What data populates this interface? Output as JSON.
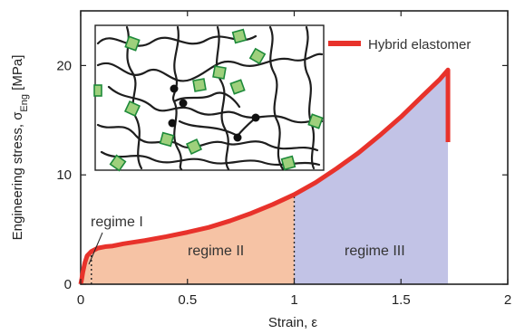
{
  "chart_data": {
    "type": "area",
    "x_axis": {
      "label": "Strain, ε",
      "ticks": [
        "0",
        "0.5",
        "1",
        "1.5",
        "2"
      ],
      "range": [
        0,
        2
      ]
    },
    "y_axis": {
      "label_main": "Engineering stress,  σ",
      "label_sub": "Eng",
      "label_unit": " [MPa]",
      "ticks": [
        "0",
        "10",
        "20"
      ],
      "range": [
        0,
        25
      ]
    },
    "series": [
      {
        "name": "Hybrid elastomer",
        "color": "#e8322b",
        "x": [
          0,
          0.005,
          0.01,
          0.02,
          0.03,
          0.05,
          0.08,
          0.12,
          0.15,
          0.2,
          0.3,
          0.4,
          0.5,
          0.6,
          0.7,
          0.8,
          0.9,
          1.0,
          1.1,
          1.2,
          1.3,
          1.4,
          1.5,
          1.6,
          1.68,
          1.72
        ],
        "y": [
          0,
          0.5,
          1.1,
          2.0,
          2.6,
          3.0,
          3.3,
          3.45,
          3.5,
          3.7,
          4.0,
          4.35,
          4.75,
          5.2,
          5.8,
          6.5,
          7.3,
          8.2,
          9.3,
          10.6,
          12.0,
          13.6,
          15.3,
          17.2,
          18.7,
          19.6
        ]
      }
    ],
    "fracture": {
      "x": 1.72,
      "y_from": 19.6,
      "y_to": 13.0
    },
    "regions": [
      {
        "label": "regime I",
        "x_start": 0,
        "x_end": 0.05,
        "color": "#f6c3a5"
      },
      {
        "label": "regime II",
        "x_start": 0.05,
        "x_end": 1.0,
        "color": "#f6c3a5"
      },
      {
        "label": "regime III",
        "x_start": 1.0,
        "x_end": 1.72,
        "color": "#c2c3e6"
      }
    ],
    "legend": {
      "position": "top-right"
    },
    "inset": {
      "type": "network-schematic"
    }
  }
}
